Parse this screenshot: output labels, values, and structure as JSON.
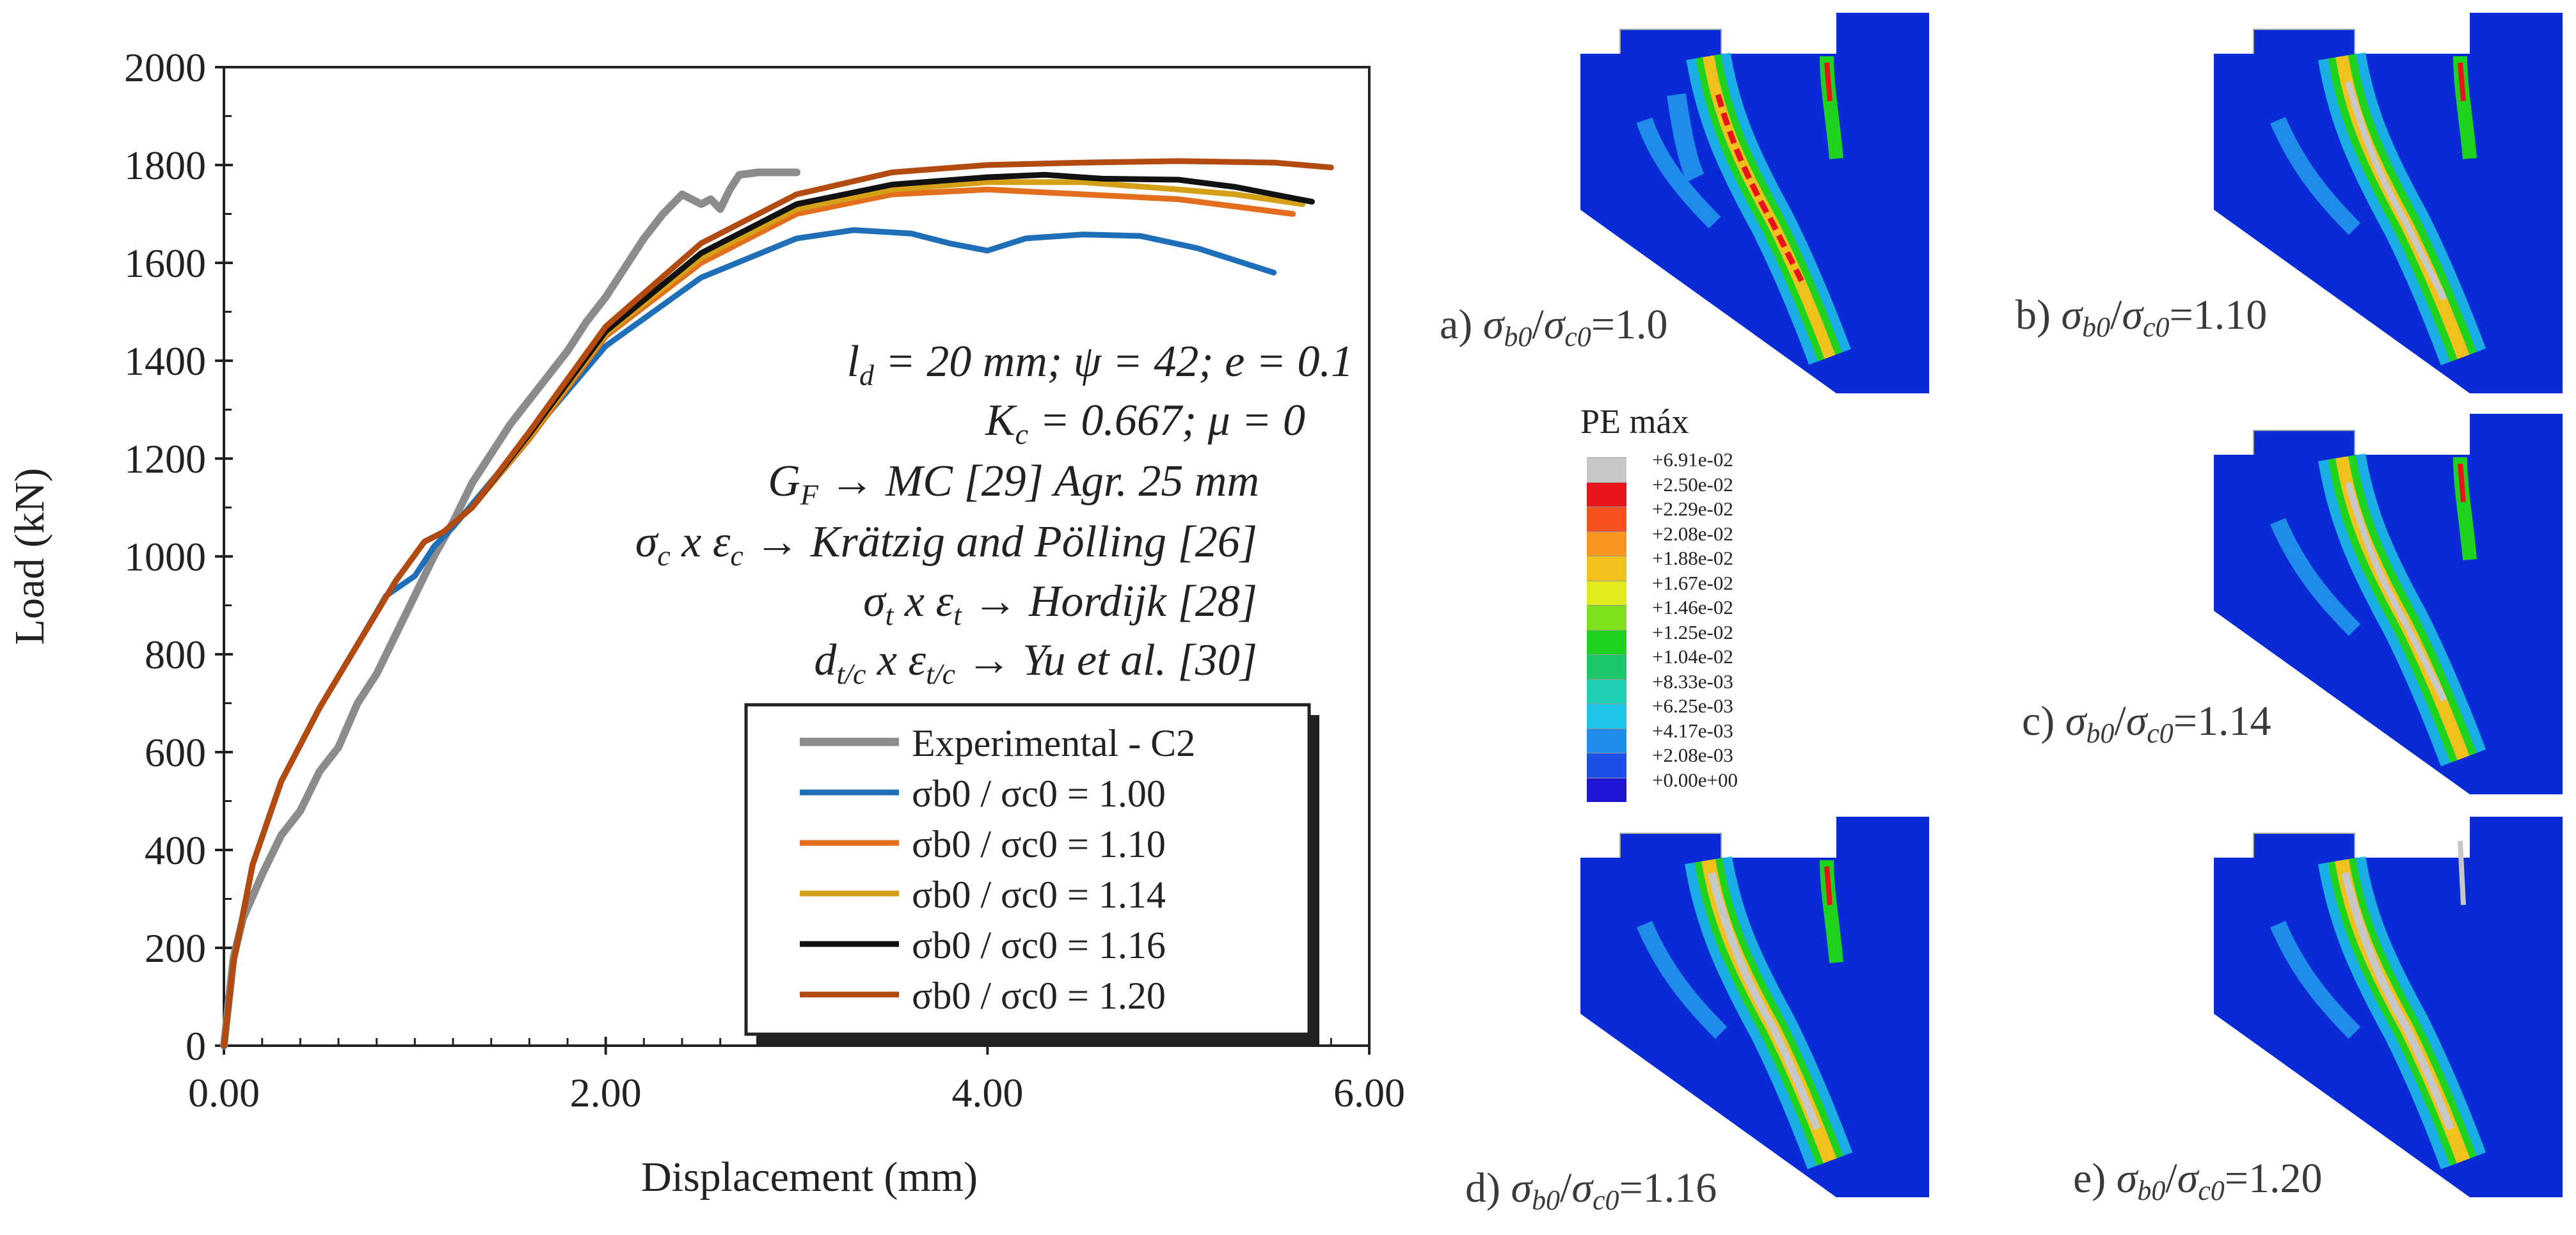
{
  "chart_data": {
    "type": "line",
    "xlabel": "Displacement (mm)",
    "ylabel": "Load (kN)",
    "xlim": [
      0,
      6
    ],
    "ylim": [
      0,
      2000
    ],
    "xticks": [
      "0.00",
      "2.00",
      "4.00",
      "6.00"
    ],
    "yticks": [
      "0",
      "200",
      "400",
      "600",
      "800",
      "1000",
      "1200",
      "1400",
      "1600",
      "1800",
      "2000"
    ],
    "annotation_lines": [
      "l_d = 20 mm; ψ = 42; e = 0.1",
      "K_c = 0.667; μ = 0",
      "G_F → MC [29] Agr. 25 mm",
      "σ_c x ε_c → Krätzig and Pölling [26]",
      "σ_t x ε_t → Hordijk [28]",
      "d_t/c x ε_t/c → Yu et al. [30]"
    ],
    "legend": {
      "position": "bottom-right"
    },
    "series": [
      {
        "name": "Experimental - C2",
        "color": "#8c8c8c",
        "x": [
          0,
          0.05,
          0.1,
          0.2,
          0.3,
          0.4,
          0.5,
          0.6,
          0.7,
          0.8,
          0.9,
          1.0,
          1.1,
          1.2,
          1.3,
          1.4,
          1.5,
          1.6,
          1.7,
          1.8,
          1.9,
          2.0,
          2.1,
          2.2,
          2.3,
          2.4,
          2.5,
          2.55,
          2.6,
          2.65,
          2.7,
          2.8,
          2.9,
          3.0
        ],
        "y": [
          0,
          180,
          260,
          350,
          430,
          480,
          560,
          610,
          700,
          760,
          840,
          920,
          1000,
          1070,
          1150,
          1210,
          1270,
          1320,
          1370,
          1420,
          1480,
          1530,
          1590,
          1650,
          1700,
          1740,
          1720,
          1730,
          1710,
          1750,
          1780,
          1785,
          1785,
          1785
        ]
      },
      {
        "name": "σb0 / σc0 = 1.00",
        "color": "#1f6fb8",
        "x": [
          0,
          0.05,
          0.15,
          0.3,
          0.5,
          0.7,
          0.85,
          1.0,
          1.1,
          1.2,
          1.5,
          2.0,
          2.5,
          3.0,
          3.3,
          3.6,
          3.8,
          4.0,
          4.2,
          4.5,
          4.8,
          5.1,
          5.5
        ],
        "y": [
          0,
          170,
          370,
          540,
          690,
          820,
          920,
          960,
          1020,
          1060,
          1200,
          1430,
          1570,
          1650,
          1667,
          1660,
          1640,
          1625,
          1650,
          1658,
          1655,
          1630,
          1580
        ]
      },
      {
        "name": "σb0 / σc0 = 1.10",
        "color": "#e36f1e",
        "x": [
          0,
          0.05,
          0.15,
          0.3,
          0.5,
          0.7,
          0.9,
          1.05,
          1.15,
          1.3,
          1.6,
          2.0,
          2.5,
          3.0,
          3.5,
          4.0,
          4.5,
          5.0,
          5.3,
          5.6
        ],
        "y": [
          0,
          170,
          370,
          540,
          690,
          820,
          950,
          1030,
          1050,
          1100,
          1240,
          1450,
          1600,
          1700,
          1740,
          1750,
          1740,
          1730,
          1715,
          1700
        ]
      },
      {
        "name": "σb0 / σc0 = 1.14",
        "color": "#d4a017",
        "x": [
          0,
          0.05,
          0.15,
          0.3,
          0.5,
          0.7,
          0.9,
          1.05,
          1.15,
          1.3,
          1.6,
          2.0,
          2.5,
          3.0,
          3.5,
          4.0,
          4.5,
          5.0,
          5.3,
          5.65
        ],
        "y": [
          0,
          170,
          370,
          540,
          690,
          820,
          950,
          1030,
          1050,
          1100,
          1245,
          1455,
          1610,
          1710,
          1750,
          1765,
          1765,
          1750,
          1740,
          1720
        ]
      },
      {
        "name": "σb0 / σc0 = 1.16",
        "color": "#111111",
        "x": [
          0,
          0.05,
          0.15,
          0.3,
          0.5,
          0.7,
          0.9,
          1.05,
          1.15,
          1.3,
          1.6,
          2.0,
          2.5,
          3.0,
          3.5,
          4.0,
          4.3,
          4.6,
          5.0,
          5.3,
          5.7
        ],
        "y": [
          0,
          170,
          370,
          540,
          690,
          820,
          950,
          1030,
          1050,
          1100,
          1250,
          1460,
          1620,
          1720,
          1760,
          1775,
          1780,
          1772,
          1770,
          1755,
          1725
        ]
      },
      {
        "name": "σb0 / σc0 = 1.20",
        "color": "#b34a10",
        "x": [
          0,
          0.05,
          0.15,
          0.3,
          0.5,
          0.7,
          0.9,
          1.05,
          1.15,
          1.3,
          1.6,
          2.0,
          2.5,
          3.0,
          3.5,
          4.0,
          4.5,
          5.0,
          5.5,
          5.8
        ],
        "y": [
          0,
          170,
          370,
          540,
          690,
          820,
          950,
          1030,
          1050,
          1100,
          1255,
          1470,
          1640,
          1740,
          1785,
          1800,
          1805,
          1808,
          1805,
          1795
        ]
      }
    ]
  },
  "fem_panels": [
    {
      "prefix": "a) ",
      "s1": "σ",
      "sub1": "b0",
      "slash": "/",
      "s2": "σ",
      "sub2": "c0",
      "suffix": "=1.0"
    },
    {
      "prefix": "b) ",
      "s1": "σ",
      "sub1": "b0",
      "slash": "/",
      "s2": "σ",
      "sub2": "c0",
      "suffix": "=1.10"
    },
    {
      "prefix": "c) ",
      "s1": "σ",
      "sub1": "b0",
      "slash": "/",
      "s2": "σ",
      "sub2": "c0",
      "suffix": "=1.14"
    },
    {
      "prefix": "d) ",
      "s1": "σ",
      "sub1": "b0",
      "slash": "/",
      "s2": "σ",
      "sub2": "c0",
      "suffix": "=1.16"
    },
    {
      "prefix": "e) ",
      "s1": "σ",
      "sub1": "b0",
      "slash": "/",
      "s2": "σ",
      "sub2": "c0",
      "suffix": "=1.20"
    }
  ],
  "colorbar": {
    "title": "PE máx",
    "ticks": [
      "+6.91e-02",
      "+2.50e-02",
      "+2.29e-02",
      "+2.08e-02",
      "+1.88e-02",
      "+1.67e-02",
      "+1.46e-02",
      "+1.25e-02",
      "+1.04e-02",
      "+8.33e-03",
      "+6.25e-03",
      "+4.17e-03",
      "+2.08e-03",
      "+0.00e+00"
    ],
    "colors": [
      "#c8c8c8",
      "#e8141c",
      "#f5501e",
      "#f7951e",
      "#f1c21e",
      "#e0ea1c",
      "#7fe01e",
      "#1ed21e",
      "#1ec86a",
      "#1ecfb4",
      "#1ec4e8",
      "#1e8ce8",
      "#1e50e8",
      "#1e14d2"
    ]
  }
}
